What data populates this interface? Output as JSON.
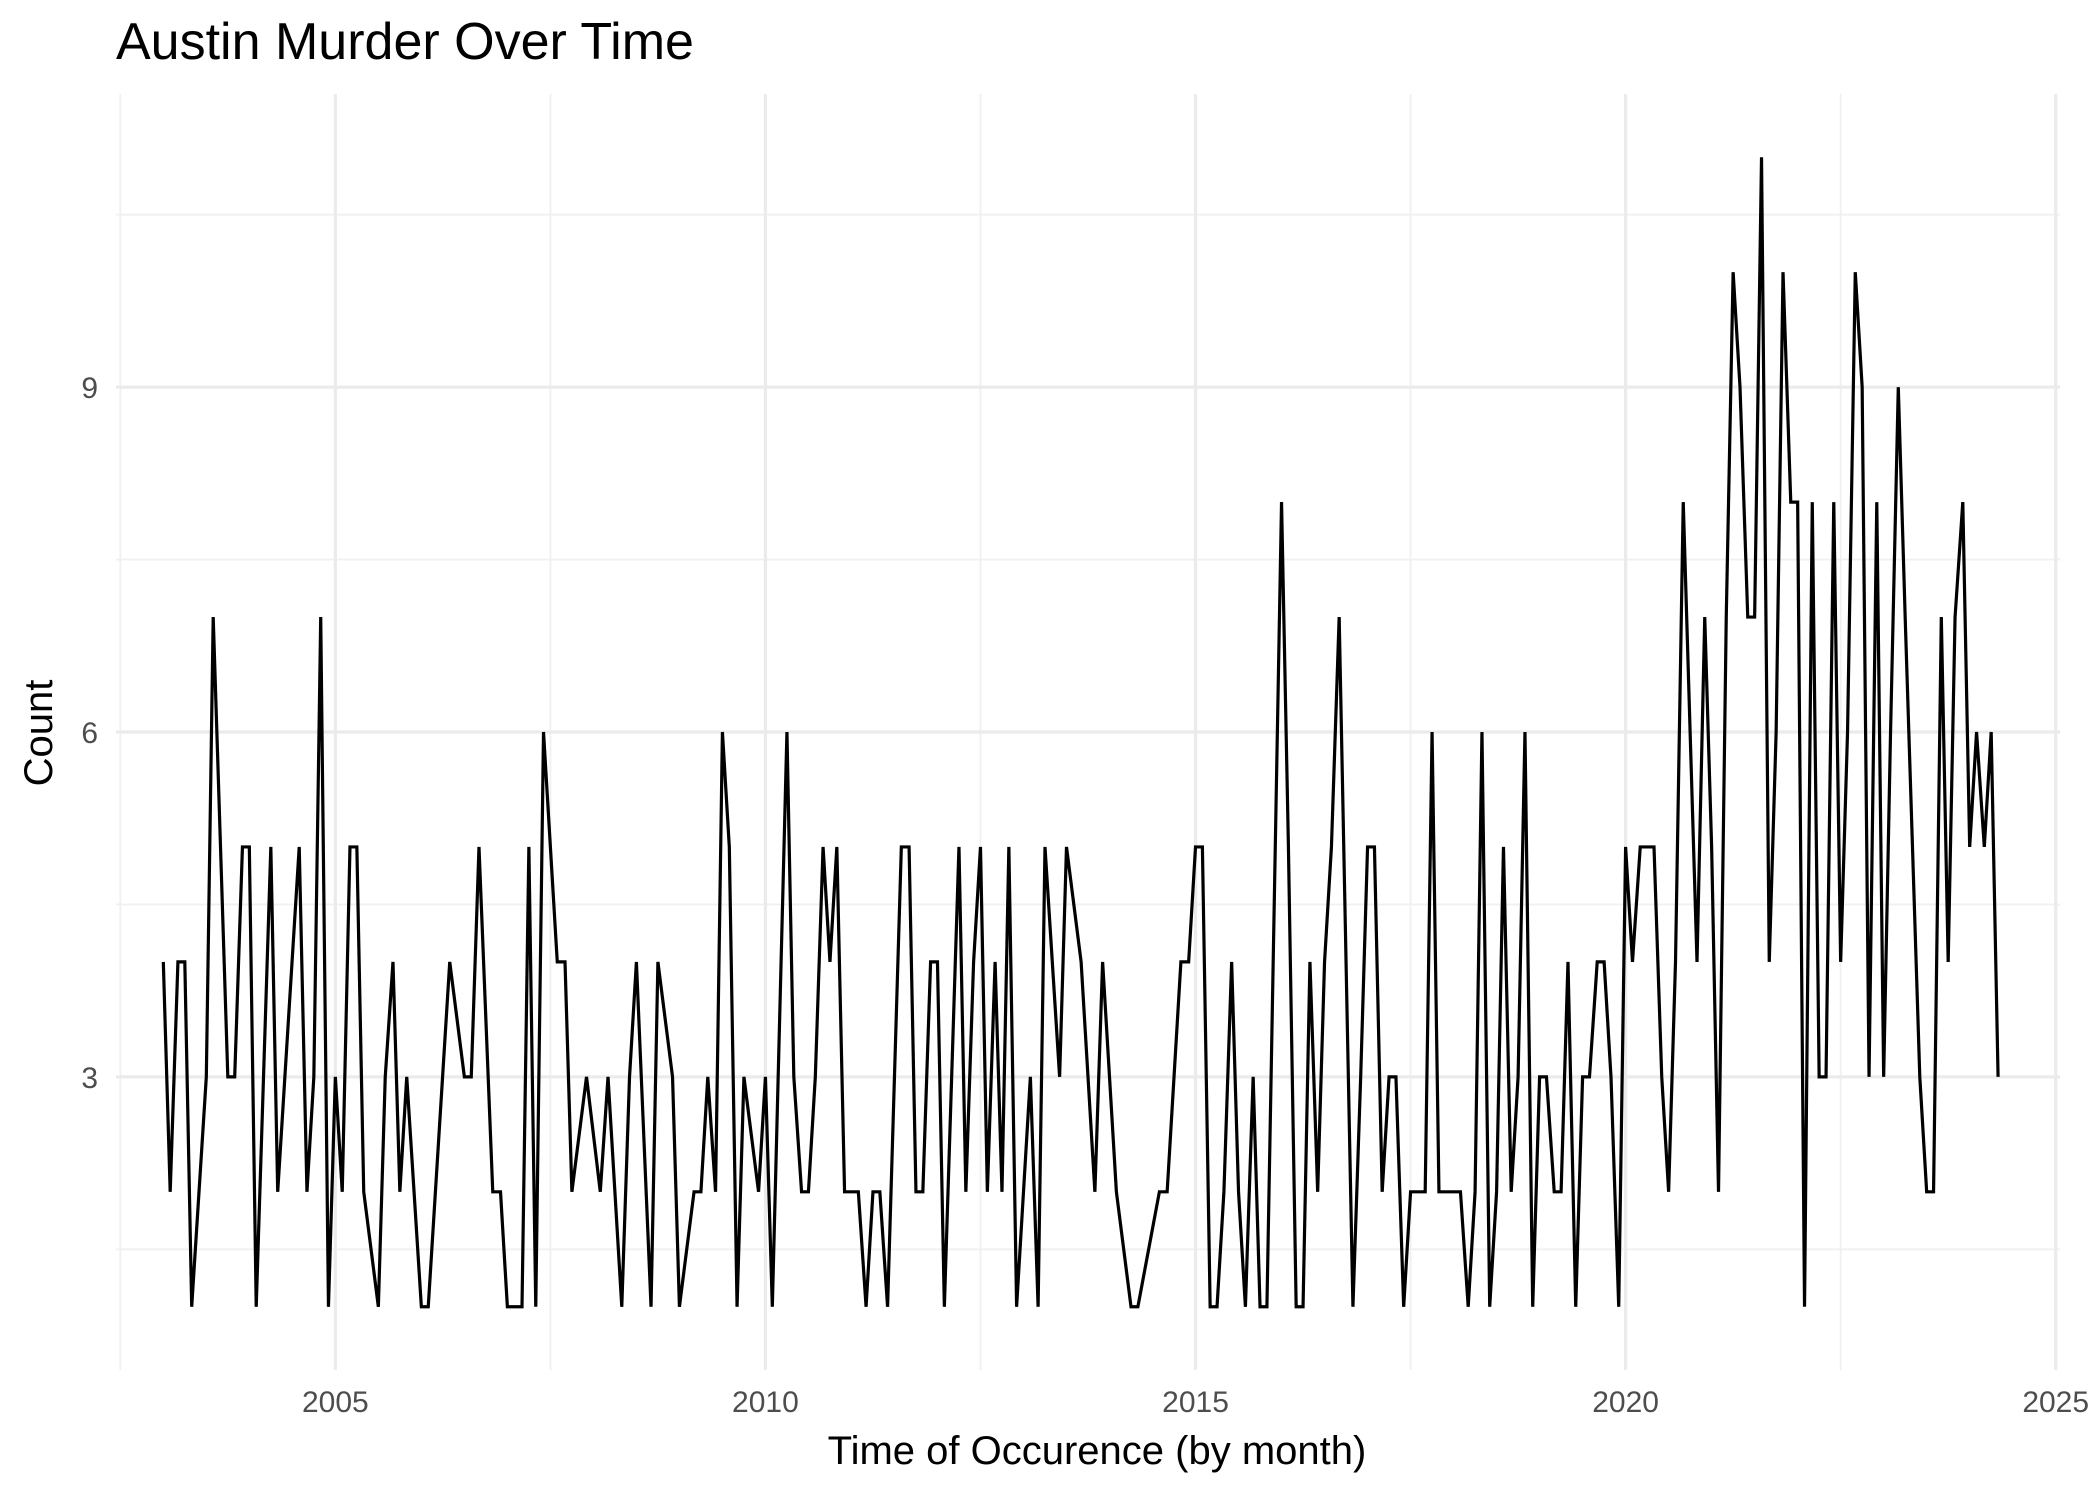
{
  "chart_data": {
    "type": "line",
    "title": "Austin Murder Over Time",
    "xlabel": "Time of Occurence (by month)",
    "ylabel": "Count",
    "xlim": [
      2002.45,
      2025.05
    ],
    "ylim": [
      0.45,
      11.55
    ],
    "x_ticks": [
      2005,
      2010,
      2015,
      2020,
      2025
    ],
    "x_tick_labels": [
      "2005",
      "2010",
      "2015",
      "2020",
      "2025"
    ],
    "y_ticks": [
      3,
      6,
      9
    ],
    "y_tick_labels": [
      "3",
      "6",
      "9"
    ],
    "grid": true,
    "legend": "none",
    "series": [
      {
        "color": "#000000",
        "points": [
          [
            2003.0,
            4
          ],
          [
            2003.08,
            2
          ],
          [
            2003.17,
            4
          ],
          [
            2003.25,
            4
          ],
          [
            2003.33,
            1
          ],
          [
            2003.5,
            3
          ],
          [
            2003.58,
            7
          ],
          [
            2003.75,
            3
          ],
          [
            2003.83,
            3
          ],
          [
            2003.92,
            5
          ],
          [
            2004.0,
            5
          ],
          [
            2004.08,
            1
          ],
          [
            2004.25,
            5
          ],
          [
            2004.33,
            2
          ],
          [
            2004.58,
            5
          ],
          [
            2004.67,
            2
          ],
          [
            2004.75,
            3
          ],
          [
            2004.83,
            7
          ],
          [
            2004.92,
            1
          ],
          [
            2005.0,
            3
          ],
          [
            2005.08,
            2
          ],
          [
            2005.17,
            5
          ],
          [
            2005.25,
            5
          ],
          [
            2005.33,
            2
          ],
          [
            2005.5,
            1
          ],
          [
            2005.58,
            3
          ],
          [
            2005.67,
            4
          ],
          [
            2005.75,
            2
          ],
          [
            2005.83,
            3
          ],
          [
            2006.0,
            1
          ],
          [
            2006.08,
            1
          ],
          [
            2006.33,
            4
          ],
          [
            2006.5,
            3
          ],
          [
            2006.58,
            3
          ],
          [
            2006.67,
            5
          ],
          [
            2006.83,
            2
          ],
          [
            2006.92,
            2
          ],
          [
            2007.0,
            1
          ],
          [
            2007.17,
            1
          ],
          [
            2007.25,
            5
          ],
          [
            2007.33,
            1
          ],
          [
            2007.42,
            6
          ],
          [
            2007.58,
            4
          ],
          [
            2007.67,
            4
          ],
          [
            2007.75,
            2
          ],
          [
            2007.92,
            3
          ],
          [
            2008.08,
            2
          ],
          [
            2008.17,
            3
          ],
          [
            2008.33,
            1
          ],
          [
            2008.42,
            3
          ],
          [
            2008.5,
            4
          ],
          [
            2008.67,
            1
          ],
          [
            2008.75,
            4
          ],
          [
            2008.92,
            3
          ],
          [
            2009.0,
            1
          ],
          [
            2009.17,
            2
          ],
          [
            2009.25,
            2
          ],
          [
            2009.33,
            3
          ],
          [
            2009.42,
            2
          ],
          [
            2009.5,
            6
          ],
          [
            2009.58,
            5
          ],
          [
            2009.67,
            1
          ],
          [
            2009.75,
            3
          ],
          [
            2009.92,
            2
          ],
          [
            2010.0,
            3
          ],
          [
            2010.08,
            1
          ],
          [
            2010.25,
            6
          ],
          [
            2010.33,
            3
          ],
          [
            2010.42,
            2
          ],
          [
            2010.5,
            2
          ],
          [
            2010.58,
            3
          ],
          [
            2010.67,
            5
          ],
          [
            2010.75,
            4
          ],
          [
            2010.83,
            5
          ],
          [
            2010.92,
            2
          ],
          [
            2011.0,
            2
          ],
          [
            2011.08,
            2
          ],
          [
            2011.17,
            1
          ],
          [
            2011.25,
            2
          ],
          [
            2011.33,
            2
          ],
          [
            2011.42,
            1
          ],
          [
            2011.58,
            5
          ],
          [
            2011.67,
            5
          ],
          [
            2011.75,
            2
          ],
          [
            2011.83,
            2
          ],
          [
            2011.92,
            4
          ],
          [
            2012.0,
            4
          ],
          [
            2012.08,
            1
          ],
          [
            2012.25,
            5
          ],
          [
            2012.33,
            2
          ],
          [
            2012.42,
            4
          ],
          [
            2012.5,
            5
          ],
          [
            2012.58,
            2
          ],
          [
            2012.67,
            4
          ],
          [
            2012.75,
            2
          ],
          [
            2012.83,
            5
          ],
          [
            2012.92,
            1
          ],
          [
            2013.08,
            3
          ],
          [
            2013.17,
            1
          ],
          [
            2013.25,
            5
          ],
          [
            2013.42,
            3
          ],
          [
            2013.5,
            5
          ],
          [
            2013.67,
            4
          ],
          [
            2013.83,
            2
          ],
          [
            2013.92,
            4
          ],
          [
            2014.08,
            2
          ],
          [
            2014.25,
            1
          ],
          [
            2014.33,
            1
          ],
          [
            2014.58,
            2
          ],
          [
            2014.67,
            2
          ],
          [
            2014.83,
            4
          ],
          [
            2014.92,
            4
          ],
          [
            2015.0,
            5
          ],
          [
            2015.08,
            5
          ],
          [
            2015.17,
            1
          ],
          [
            2015.25,
            1
          ],
          [
            2015.33,
            2
          ],
          [
            2015.42,
            4
          ],
          [
            2015.5,
            2
          ],
          [
            2015.58,
            1
          ],
          [
            2015.67,
            3
          ],
          [
            2015.75,
            1
          ],
          [
            2015.83,
            1
          ],
          [
            2016.0,
            8
          ],
          [
            2016.08,
            5
          ],
          [
            2016.17,
            1
          ],
          [
            2016.25,
            1
          ],
          [
            2016.33,
            4
          ],
          [
            2016.42,
            2
          ],
          [
            2016.5,
            4
          ],
          [
            2016.58,
            5
          ],
          [
            2016.67,
            7
          ],
          [
            2016.75,
            4
          ],
          [
            2016.83,
            1
          ],
          [
            2016.92,
            3
          ],
          [
            2017.0,
            5
          ],
          [
            2017.08,
            5
          ],
          [
            2017.17,
            2
          ],
          [
            2017.25,
            3
          ],
          [
            2017.33,
            3
          ],
          [
            2017.42,
            1
          ],
          [
            2017.5,
            2
          ],
          [
            2017.58,
            2
          ],
          [
            2017.67,
            2
          ],
          [
            2017.75,
            6
          ],
          [
            2017.83,
            2
          ],
          [
            2017.92,
            2
          ],
          [
            2018.08,
            2
          ],
          [
            2018.17,
            1
          ],
          [
            2018.25,
            2
          ],
          [
            2018.33,
            6
          ],
          [
            2018.42,
            1
          ],
          [
            2018.5,
            2
          ],
          [
            2018.58,
            5
          ],
          [
            2018.67,
            2
          ],
          [
            2018.75,
            3
          ],
          [
            2018.83,
            6
          ],
          [
            2018.92,
            1
          ],
          [
            2019.0,
            3
          ],
          [
            2019.08,
            3
          ],
          [
            2019.17,
            2
          ],
          [
            2019.25,
            2
          ],
          [
            2019.33,
            4
          ],
          [
            2019.42,
            1
          ],
          [
            2019.5,
            3
          ],
          [
            2019.58,
            3
          ],
          [
            2019.67,
            4
          ],
          [
            2019.75,
            4
          ],
          [
            2019.83,
            3
          ],
          [
            2019.92,
            1
          ],
          [
            2020.0,
            5
          ],
          [
            2020.08,
            4
          ],
          [
            2020.17,
            5
          ],
          [
            2020.25,
            5
          ],
          [
            2020.33,
            5
          ],
          [
            2020.42,
            3
          ],
          [
            2020.5,
            2
          ],
          [
            2020.58,
            4
          ],
          [
            2020.67,
            8
          ],
          [
            2020.75,
            6
          ],
          [
            2020.83,
            4
          ],
          [
            2020.92,
            7
          ],
          [
            2021.0,
            5
          ],
          [
            2021.08,
            2
          ],
          [
            2021.17,
            7
          ],
          [
            2021.25,
            10
          ],
          [
            2021.33,
            9
          ],
          [
            2021.42,
            7
          ],
          [
            2021.5,
            7
          ],
          [
            2021.58,
            11
          ],
          [
            2021.67,
            4
          ],
          [
            2021.75,
            6
          ],
          [
            2021.83,
            10
          ],
          [
            2021.92,
            8
          ],
          [
            2022.0,
            8
          ],
          [
            2022.08,
            1
          ],
          [
            2022.17,
            8
          ],
          [
            2022.25,
            3
          ],
          [
            2022.33,
            3
          ],
          [
            2022.42,
            8
          ],
          [
            2022.5,
            4
          ],
          [
            2022.58,
            6
          ],
          [
            2022.67,
            10
          ],
          [
            2022.75,
            9
          ],
          [
            2022.83,
            3
          ],
          [
            2022.92,
            8
          ],
          [
            2023.0,
            3
          ],
          [
            2023.08,
            6
          ],
          [
            2023.17,
            9
          ],
          [
            2023.25,
            7
          ],
          [
            2023.42,
            3
          ],
          [
            2023.5,
            2
          ],
          [
            2023.58,
            2
          ],
          [
            2023.67,
            7
          ],
          [
            2023.75,
            4
          ],
          [
            2023.83,
            7
          ],
          [
            2023.92,
            8
          ],
          [
            2024.0,
            5
          ],
          [
            2024.08,
            6
          ],
          [
            2024.17,
            5
          ],
          [
            2024.25,
            6
          ],
          [
            2024.33,
            3
          ]
        ]
      }
    ]
  }
}
